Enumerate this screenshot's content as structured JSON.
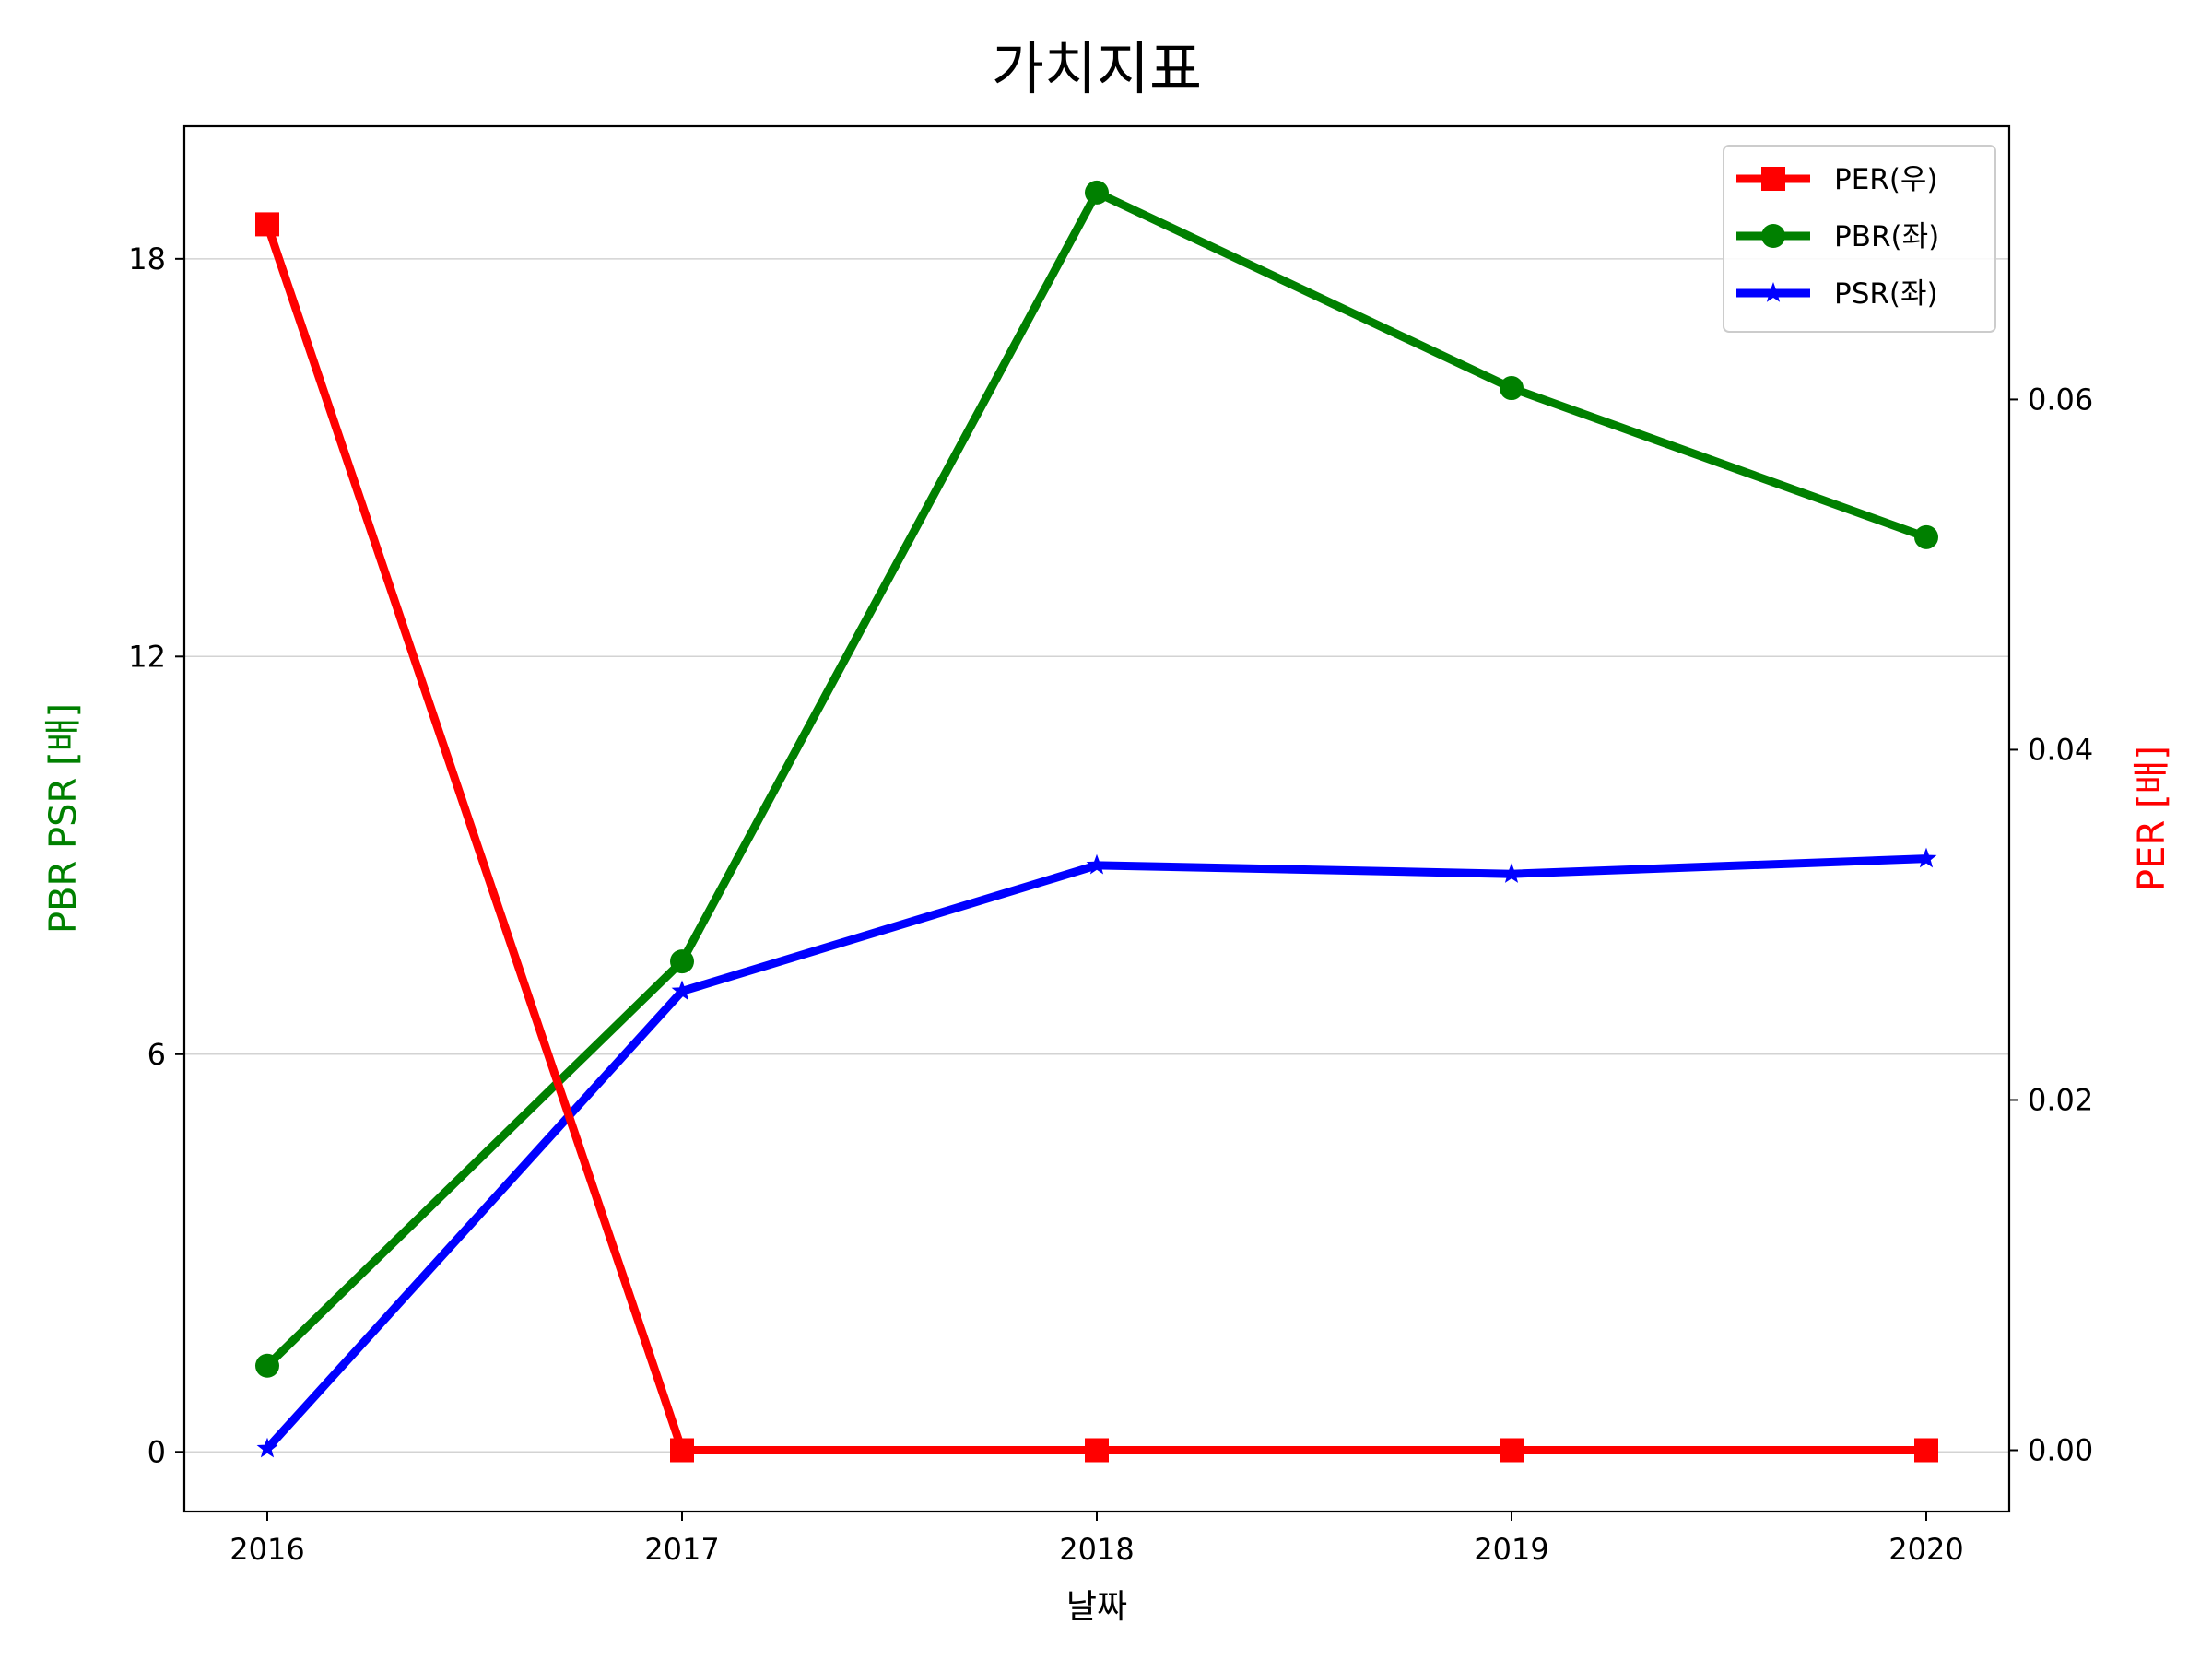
{
  "chart_data": {
    "type": "line",
    "title": "가치지표",
    "xlabel": "날짜",
    "ylabel_left": "PBR PSR [배]",
    "ylabel_right": "PER [배]",
    "categories": [
      "2016",
      "2017",
      "2018",
      "2019",
      "2020"
    ],
    "ylim_left": [
      -0.9,
      20.0
    ],
    "yticks_left": [
      0,
      6,
      12,
      18
    ],
    "ylim_right": [
      -0.0035,
      0.0756
    ],
    "yticks_right": [
      "0.00",
      "0.02",
      "0.04",
      "0.06"
    ],
    "grid": "horizontal (left axis)",
    "legend_position": "top-right",
    "series": [
      {
        "name": "PER(우)",
        "axis": "right",
        "marker": "square",
        "color": "#ff0000",
        "values": [
          0.07,
          0.0,
          0.0,
          0.0,
          0.0
        ]
      },
      {
        "name": "PBR(좌)",
        "axis": "left",
        "marker": "circle",
        "color": "#008000",
        "values": [
          1.3,
          7.4,
          19.0,
          16.05,
          13.8
        ]
      },
      {
        "name": "PSR(좌)",
        "axis": "left",
        "marker": "star",
        "color": "#0000ff",
        "values": [
          0.05,
          6.95,
          8.85,
          8.72,
          8.95
        ]
      }
    ]
  }
}
